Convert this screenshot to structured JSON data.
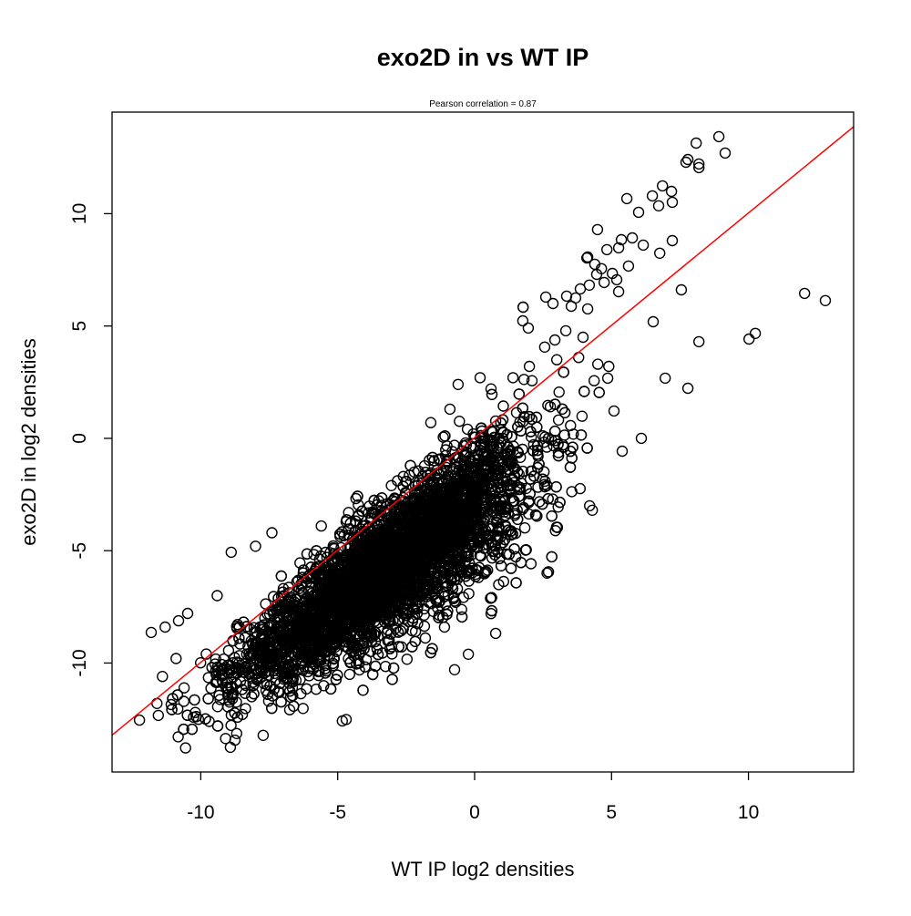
{
  "chart_data": {
    "type": "scatter",
    "title": "exo2D in vs WT IP",
    "subtitle": "Pearson correlation =  0.87",
    "xlabel": "WT IP log2 densities",
    "ylabel": "exo2D in log2 densities",
    "xlim": [
      -13.24,
      13.84
    ],
    "ylim": [
      -14.85,
      14.52
    ],
    "xticks": [
      -10,
      -5,
      0,
      5,
      10
    ],
    "yticks": [
      -10,
      -5,
      0,
      5,
      10
    ],
    "xtick_labels": [
      "-10",
      "-5",
      "0",
      "5",
      "10"
    ],
    "ytick_labels": [
      "-10",
      "-5",
      "0",
      "5",
      "10"
    ],
    "grid": false,
    "point_color": "#000000",
    "fit_line": {
      "color": "#ff0000",
      "slope": 1.0,
      "intercept": 0.03
    },
    "dense_cloud": {
      "n": 6000,
      "x_mean": -3.2,
      "x_sd": 2.6,
      "x_min": -11.2,
      "x_max": 4.6,
      "y_slope": 0.85,
      "y_intercept": -3.0,
      "y_sd_base": 1.25,
      "y_sd_growth": 0.08
    },
    "outlier_points": [
      [
        8.92,
        13.43
      ],
      [
        8.09,
        13.14
      ],
      [
        9.15,
        12.7
      ],
      [
        7.72,
        12.29
      ],
      [
        7.79,
        12.41
      ],
      [
        8.19,
        12.21
      ],
      [
        8.19,
        12.05
      ],
      [
        6.86,
        11.24
      ],
      [
        6.49,
        10.79
      ],
      [
        7.19,
        10.99
      ],
      [
        7.22,
        10.51
      ],
      [
        6.72,
        10.35
      ],
      [
        5.56,
        10.67
      ],
      [
        5.99,
        10.06
      ],
      [
        4.49,
        9.29
      ],
      [
        7.22,
        8.8
      ],
      [
        6.16,
        8.6
      ],
      [
        5.36,
        8.84
      ],
      [
        5.76,
        8.92
      ],
      [
        6.76,
        8.24
      ],
      [
        4.83,
        8.4
      ],
      [
        5.26,
        8.48
      ],
      [
        4.13,
        8.07
      ],
      [
        4.1,
        8.03
      ],
      [
        5.62,
        7.67
      ],
      [
        4.39,
        7.75
      ],
      [
        4.63,
        7.55
      ],
      [
        5.03,
        7.34
      ],
      [
        4.46,
        7.3
      ],
      [
        5.19,
        7.06
      ],
      [
        4.73,
        6.94
      ],
      [
        5.26,
        6.53
      ],
      [
        3.86,
        6.65
      ],
      [
        4.19,
        6.82
      ],
      [
        3.36,
        6.33
      ],
      [
        3.69,
        6.25
      ],
      [
        2.86,
        6.0
      ],
      [
        2.6,
        6.29
      ],
      [
        4.13,
        5.76
      ],
      [
        3.53,
        5.88
      ],
      [
        1.76,
        5.23
      ],
      [
        1.96,
        4.91
      ],
      [
        3.33,
        4.79
      ],
      [
        2.93,
        4.38
      ],
      [
        3.96,
        4.5
      ],
      [
        2.56,
        4.06
      ],
      [
        4.86,
        2.68
      ],
      [
        6.52,
        5.19
      ],
      [
        7.55,
        6.61
      ],
      [
        12.05,
        6.45
      ],
      [
        12.81,
        6.13
      ],
      [
        8.19,
        4.3
      ],
      [
        10.02,
        4.42
      ],
      [
        10.25,
        4.67
      ],
      [
        6.96,
        2.68
      ],
      [
        7.79,
        2.23
      ],
      [
        6.09,
        0.0
      ],
      [
        5.39,
        -0.57
      ],
      [
        5.09,
        1.22
      ],
      [
        4.5,
        3.3
      ],
      [
        4.9,
        3.2
      ],
      [
        4.2,
        -3.0
      ],
      [
        4.3,
        -3.2
      ],
      [
        -11.81,
        -8.64
      ],
      [
        -12.24,
        -12.54
      ],
      [
        -8.92,
        -13.75
      ],
      [
        -7.72,
        -13.22
      ],
      [
        -8.89,
        -5.07
      ],
      [
        -4.83,
        -12.58
      ],
      [
        -0.73,
        -10.3
      ],
      [
        -0.23,
        -9.61
      ],
      [
        1.06,
        -6.37
      ],
      [
        0.77,
        -8.68
      ],
      [
        0.6,
        -7.8
      ],
      [
        -11.3,
        -8.4
      ],
      [
        -10.48,
        -7.79
      ],
      [
        -10.81,
        -8.12
      ],
      [
        -11.55,
        -12.33
      ],
      [
        -11.08,
        -11.85
      ],
      [
        -8.69,
        -13.14
      ],
      [
        -11.4,
        -10.6
      ],
      [
        -11.6,
        -11.8
      ],
      [
        -10.9,
        -9.8
      ],
      [
        -10.2,
        -12.2
      ],
      [
        -9.8,
        -9.6
      ],
      [
        -9.4,
        -7.0
      ],
      [
        -8.0,
        -4.8
      ],
      [
        -7.4,
        -4.2
      ],
      [
        -5.6,
        -3.9
      ],
      [
        -4.6,
        -3.3
      ],
      [
        -2.6,
        -1.7
      ],
      [
        -1.6,
        0.7
      ],
      [
        -0.9,
        1.3
      ],
      [
        -0.6,
        2.4
      ],
      [
        0.2,
        2.7
      ],
      [
        0.6,
        2.2
      ],
      [
        1.4,
        2.7
      ],
      [
        2.0,
        3.2
      ],
      [
        3.0,
        3.5
      ],
      [
        3.8,
        3.6
      ]
    ]
  }
}
